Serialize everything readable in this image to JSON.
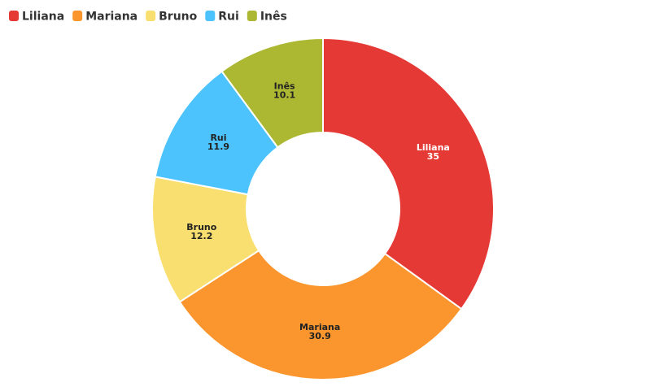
{
  "chart_data": {
    "type": "donut",
    "categories": [
      "Liliana",
      "Mariana",
      "Bruno",
      "Rui",
      "Inês"
    ],
    "values": [
      35,
      30.9,
      12.2,
      11.9,
      10.1
    ],
    "colors": [
      "#e53935",
      "#fb962e",
      "#f9df6f",
      "#4cc3fc",
      "#acb832"
    ],
    "legend": "top-left"
  }
}
